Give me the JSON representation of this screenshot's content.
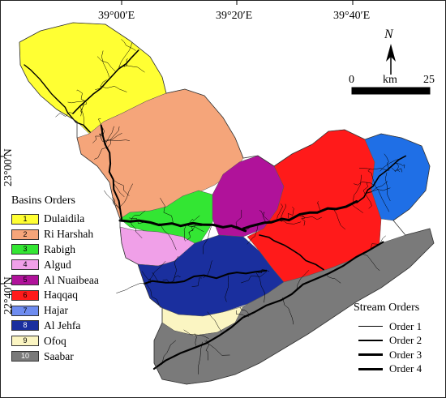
{
  "coordinates": {
    "top": [
      "39°00′E",
      "39°20′E",
      "39°40′E"
    ],
    "left": [
      "23°00′N",
      "22°40′N"
    ]
  },
  "north_arrow": "N",
  "scale": {
    "start": "0",
    "unit": "km",
    "end": "25"
  },
  "basins": {
    "title": "Basins Orders",
    "items": [
      {
        "num": "1",
        "name": "Dulaidila",
        "color": "#ffff33"
      },
      {
        "num": "2",
        "name": "Ri Harshah",
        "color": "#f5a57a"
      },
      {
        "num": "3",
        "name": "Rabigh",
        "color": "#33e633"
      },
      {
        "num": "4",
        "name": "Algud",
        "color": "#f0a0e8"
      },
      {
        "num": "5",
        "name": "Al Nuaibeaa",
        "color": "#b0129a"
      },
      {
        "num": "6",
        "name": "Haqqaq",
        "color": "#ff1a1a"
      },
      {
        "num": "7",
        "name": "Hajar",
        "color": "#6e8cf0"
      },
      {
        "num": "8",
        "name": "Al Jehfa",
        "color": "#1a2f9e"
      },
      {
        "num": "9",
        "name": "Ofoq",
        "color": "#fbf5c2"
      },
      {
        "num": "10",
        "name": "Saabar",
        "color": "#7a7a7a"
      }
    ]
  },
  "basin_map_colors": {
    "haqqaq_east": "#1f6fe6"
  },
  "stream_orders": {
    "title": "Stream Orders",
    "items": [
      "Order 1",
      "Order 2",
      "Order 3",
      "Order 4"
    ]
  }
}
